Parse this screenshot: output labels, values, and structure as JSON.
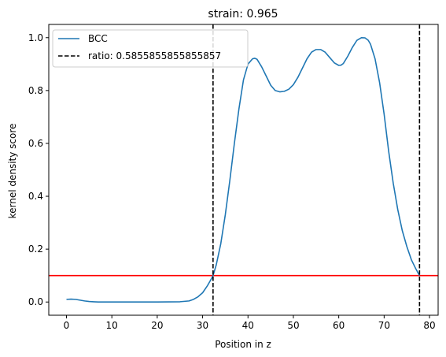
{
  "chart_data": {
    "type": "line",
    "title": "strain: 0.965",
    "xlabel": "Position in z",
    "ylabel": "kernel density score",
    "xlim": [
      -3.9,
      81.9
    ],
    "ylim": [
      -0.05,
      1.05
    ],
    "xticks": [
      0,
      10,
      20,
      30,
      40,
      50,
      60,
      70,
      80
    ],
    "yticks": [
      0.0,
      0.2,
      0.4,
      0.6,
      0.8,
      1.0
    ],
    "xtick_labels": [
      "0",
      "10",
      "20",
      "30",
      "40",
      "50",
      "60",
      "70",
      "80"
    ],
    "ytick_labels": [
      "0.0",
      "0.2",
      "0.4",
      "0.6",
      "0.8",
      "1.0"
    ],
    "grid": false,
    "legend_position": "upper-left",
    "series": [
      {
        "name": "BCC",
        "color": "#1f77b4",
        "x": [
          0,
          1,
          2,
          3,
          4,
          5,
          6,
          7,
          8,
          10,
          15,
          20,
          25,
          27,
          28,
          29,
          30,
          31,
          32,
          32.3,
          33,
          34,
          35,
          36,
          37,
          38,
          39,
          40,
          41,
          41.5,
          42,
          43,
          44,
          45,
          46,
          47,
          48,
          49,
          50,
          51,
          52,
          53,
          54,
          55,
          56,
          57,
          58,
          59,
          60,
          60.5,
          61,
          62,
          63,
          64,
          65,
          65.8,
          66.5,
          67,
          68,
          69,
          70,
          71,
          72,
          73,
          74,
          75,
          76,
          77,
          77.8
        ],
        "y": [
          0.01,
          0.011,
          0.01,
          0.007,
          0.004,
          0.002,
          0.001,
          0.0,
          0.0,
          0.0,
          0.0,
          0.0,
          0.001,
          0.004,
          0.01,
          0.02,
          0.035,
          0.06,
          0.09,
          0.1,
          0.14,
          0.22,
          0.33,
          0.46,
          0.6,
          0.73,
          0.84,
          0.9,
          0.92,
          0.922,
          0.918,
          0.89,
          0.855,
          0.82,
          0.8,
          0.795,
          0.797,
          0.805,
          0.822,
          0.85,
          0.885,
          0.92,
          0.945,
          0.955,
          0.955,
          0.945,
          0.925,
          0.905,
          0.895,
          0.896,
          0.902,
          0.93,
          0.963,
          0.99,
          1.0,
          0.999,
          0.99,
          0.975,
          0.92,
          0.83,
          0.71,
          0.57,
          0.45,
          0.35,
          0.27,
          0.21,
          0.16,
          0.125,
          0.1
        ]
      }
    ],
    "vlines": [
      {
        "x": 32.3,
        "color": "#000000",
        "style": "dashed",
        "label": "ratio: 0.5855855855855857"
      },
      {
        "x": 77.8,
        "color": "#000000",
        "style": "dashed"
      }
    ],
    "hlines": [
      {
        "y": 0.1,
        "color": "#ff0000",
        "style": "solid"
      }
    ]
  }
}
